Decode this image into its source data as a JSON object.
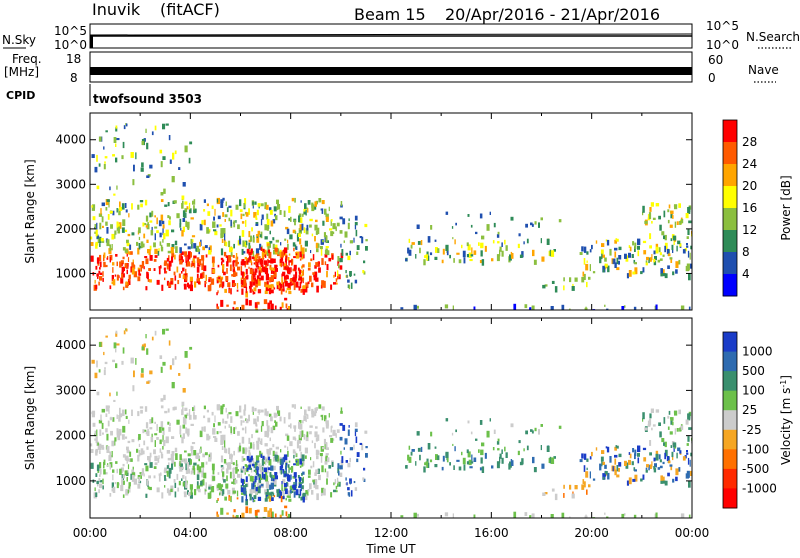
{
  "header": {
    "station": "Inuvik",
    "mode": "(fitACF)",
    "beam": "Beam 15",
    "date_range": "20/Apr/2016 - 21/Apr/2016"
  },
  "summary_panels": {
    "nsky_label": "N.Sky",
    "nsearch_label": "N.Search",
    "nsky_ticks": [
      "10^5",
      "10^0"
    ],
    "freq_label_top": "Freq.",
    "freq_label_unit": "[MHz]",
    "freq_ticks": [
      "18",
      "8"
    ],
    "nave_label": "Nave",
    "nave_ticks": [
      "60",
      "0"
    ],
    "cpid_label": "CPID",
    "cpid_value": "twofsound 3503"
  },
  "chart_data": [
    {
      "type": "heatmap",
      "name": "power",
      "ylabel": "Slant Range [km]",
      "xlabel": "",
      "x_ticks": [
        "00:00",
        "04:00",
        "08:00",
        "12:00",
        "16:00",
        "20:00",
        "00:00"
      ],
      "y_ticks": [
        1000,
        2000,
        3000,
        4000
      ],
      "ylim": [
        180,
        4600
      ],
      "xlim_hours": [
        0,
        24
      ],
      "colorbar": {
        "label": "Power [dB]",
        "ticks": [
          "28",
          "24",
          "20",
          "16",
          "12",
          "8",
          "4"
        ],
        "colors": [
          "#ff0000",
          "#ff5a00",
          "#ffa500",
          "#ffff00",
          "#8bbf3f",
          "#2e8b57",
          "#1f4faf",
          "#0000ff"
        ]
      }
    },
    {
      "type": "heatmap",
      "name": "velocity",
      "ylabel": "Slant Range [km]",
      "xlabel": "Time UT",
      "x_ticks": [
        "00:00",
        "04:00",
        "08:00",
        "12:00",
        "16:00",
        "20:00",
        "00:00"
      ],
      "y_ticks": [
        1000,
        2000,
        3000,
        4000
      ],
      "ylim": [
        180,
        4600
      ],
      "xlim_hours": [
        0,
        24
      ],
      "colorbar": {
        "label": "Velocity [m s",
        "label_sup": "-1",
        "label_close": "]",
        "ticks": [
          "1000",
          "500",
          "100",
          "25",
          "-25",
          "-100",
          "-500",
          "-1000"
        ],
        "colors": [
          "#1a3cc8",
          "#2e6bb0",
          "#3a8f6e",
          "#6cc04a",
          "#cccccc",
          "#f5a623",
          "#ff7000",
          "#ff2a00",
          "#ff0000"
        ]
      }
    }
  ]
}
